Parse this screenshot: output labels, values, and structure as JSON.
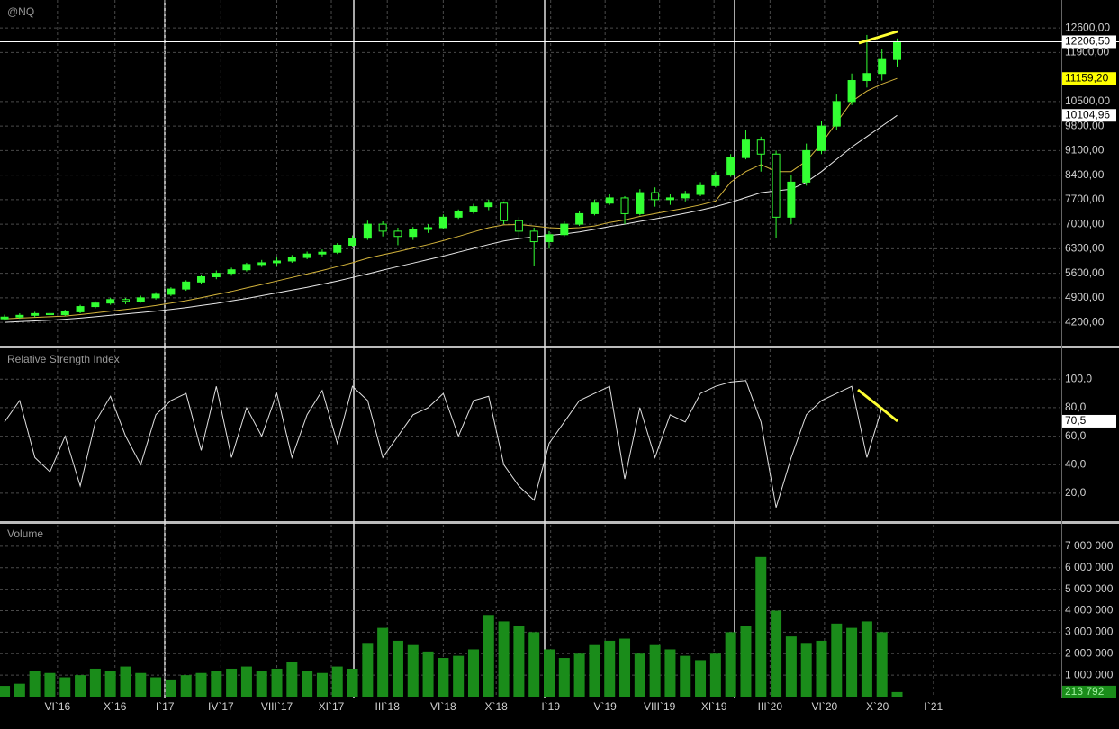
{
  "chart_data": [
    {
      "type": "candlestick",
      "title": "@NQ",
      "xlim": [
        -0.3,
        69.8
      ],
      "ylim": [
        3560,
        13400
      ],
      "grid": true,
      "up_color": "#33ff33",
      "down_color": "#000000",
      "outline_color": "#33ff33",
      "yticks": [
        {
          "value": 4200,
          "label": "4200,00"
        },
        {
          "value": 4900,
          "label": "4900,00"
        },
        {
          "value": 5600,
          "label": "5600,00"
        },
        {
          "value": 6300,
          "label": "6300,00"
        },
        {
          "value": 7000,
          "label": "7000,00"
        },
        {
          "value": 7700,
          "label": "7700,00"
        },
        {
          "value": 8400,
          "label": "8400,00"
        },
        {
          "value": 9100,
          "label": "9100,00"
        },
        {
          "value": 9800,
          "label": "9800,00"
        },
        {
          "value": 10500,
          "label": "10500,00"
        },
        {
          "value": 11900,
          "label": "11900,00"
        },
        {
          "value": 12600,
          "label": "12600,00"
        }
      ],
      "open": [
        4300,
        4350,
        4400,
        4450,
        4420,
        4500,
        4650,
        4750,
        4850,
        4800,
        4900,
        5000,
        5150,
        5350,
        5500,
        5600,
        5700,
        5850,
        5900,
        5950,
        6050,
        6150,
        6200,
        6400,
        6600,
        7000,
        6800,
        6650,
        6850,
        6900,
        7200,
        7350,
        7500,
        7600,
        7100,
        6800,
        6500,
        6700,
        7000,
        7300,
        7600,
        7750,
        7300,
        7900,
        7700,
        7750,
        7850,
        8100,
        8400,
        8900,
        9400,
        9000,
        7200,
        8200,
        9100,
        9800,
        10500,
        11100,
        11300,
        11700
      ],
      "high": [
        4420,
        4460,
        4500,
        4500,
        4560,
        4700,
        4800,
        4900,
        4900,
        4960,
        5060,
        5200,
        5400,
        5560,
        5680,
        5760,
        5900,
        5980,
        6050,
        6120,
        6220,
        6280,
        6460,
        6680,
        7100,
        7080,
        6900,
        6920,
        7000,
        7280,
        7420,
        7580,
        7700,
        7650,
        7200,
        6900,
        6800,
        7080,
        7380,
        7700,
        7850,
        7800,
        8000,
        8050,
        7850,
        7950,
        8200,
        8500,
        9000,
        9700,
        9500,
        9100,
        8400,
        9300,
        9950,
        10700,
        11300,
        12400,
        12000,
        12300
      ],
      "low": [
        4250,
        4300,
        4350,
        4330,
        4380,
        4460,
        4600,
        4700,
        4720,
        4760,
        4850,
        4950,
        5100,
        5300,
        5430,
        5530,
        5650,
        5780,
        5820,
        5900,
        6000,
        6080,
        6150,
        6350,
        6550,
        6650,
        6400,
        6550,
        6750,
        6850,
        7150,
        7300,
        7400,
        7000,
        6600,
        5800,
        6300,
        6650,
        6950,
        7250,
        7550,
        7000,
        7250,
        7500,
        7550,
        7650,
        7800,
        8050,
        8350,
        8850,
        8500,
        6600,
        7000,
        8100,
        9000,
        9700,
        10400,
        10900,
        11100,
        11500
      ],
      "close": [
        4350,
        4400,
        4450,
        4420,
        4500,
        4650,
        4750,
        4850,
        4800,
        4900,
        5000,
        5150,
        5350,
        5500,
        5600,
        5700,
        5850,
        5900,
        5950,
        6050,
        6150,
        6200,
        6400,
        6600,
        7000,
        6800,
        6650,
        6850,
        6900,
        7200,
        7350,
        7500,
        7600,
        7100,
        6800,
        6500,
        6700,
        7000,
        7300,
        7600,
        7750,
        7300,
        7900,
        7700,
        7750,
        7850,
        8100,
        8400,
        8900,
        9400,
        9000,
        7200,
        8200,
        9100,
        9800,
        10500,
        11100,
        11300,
        11700,
        12206.5
      ],
      "overlays": [
        {
          "color": "#d4b43c",
          "values": [
            4300,
            4320,
            4340,
            4360,
            4380,
            4420,
            4470,
            4520,
            4570,
            4620,
            4680,
            4750,
            4820,
            4900,
            4990,
            5080,
            5180,
            5280,
            5380,
            5480,
            5580,
            5680,
            5790,
            5900,
            6030,
            6130,
            6220,
            6320,
            6420,
            6530,
            6650,
            6780,
            6900,
            6980,
            6990,
            6950,
            6900,
            6880,
            6900,
            6950,
            7050,
            7120,
            7220,
            7300,
            7380,
            7460,
            7550,
            7660,
            8200,
            8500,
            8700,
            8500,
            8500,
            8800,
            9300,
            9900,
            10500,
            10800,
            11000,
            11159.2
          ]
        },
        {
          "color": "#e8e8e8",
          "values": [
            4200,
            4220,
            4240,
            4260,
            4290,
            4320,
            4360,
            4400,
            4440,
            4480,
            4520,
            4570,
            4620,
            4680,
            4740,
            4810,
            4880,
            4960,
            5040,
            5120,
            5200,
            5290,
            5380,
            5480,
            5580,
            5690,
            5790,
            5890,
            5990,
            6090,
            6200,
            6310,
            6420,
            6520,
            6590,
            6640,
            6680,
            6720,
            6780,
            6850,
            6930,
            7000,
            7080,
            7150,
            7230,
            7310,
            7400,
            7500,
            7620,
            7760,
            7900,
            7950,
            8000,
            8200,
            8500,
            8850,
            9200,
            9500,
            9800,
            10104.96
          ]
        }
      ],
      "markers": [
        {
          "value": 12206.5,
          "label": "12206,50",
          "color": "#ffffff"
        },
        {
          "value": 11159.2,
          "label": "11159,20",
          "color": "#ffff00"
        },
        {
          "value": 10104.96,
          "label": "10104,96",
          "color": "#ffffff"
        }
      ]
    },
    {
      "type": "line",
      "title": "Relative Strength Index",
      "color": "#e0e0e0",
      "xlim": [
        -0.3,
        69.8
      ],
      "ylim": [
        1,
        121
      ],
      "grid": true,
      "yticks": [
        {
          "value": 20,
          "label": "20,0"
        },
        {
          "value": 40,
          "label": "40,0"
        },
        {
          "value": 60,
          "label": "60,0"
        },
        {
          "value": 80,
          "label": "80,0"
        },
        {
          "value": 100,
          "label": "100,0"
        }
      ],
      "values": [
        70,
        85,
        45,
        35,
        60,
        25,
        70,
        88,
        60,
        40,
        75,
        85,
        90,
        50,
        95,
        45,
        80,
        60,
        90,
        45,
        75,
        92,
        55,
        95,
        85,
        45,
        60,
        75,
        80,
        90,
        60,
        85,
        88,
        40,
        25,
        15,
        55,
        70,
        85,
        90,
        95,
        30,
        80,
        45,
        75,
        70,
        90,
        95,
        98,
        99,
        70,
        10,
        45,
        75,
        85,
        90,
        95,
        45,
        80,
        70.5
      ],
      "markers": [
        {
          "value": 70.5,
          "label": "70,5",
          "color": "#ffffff"
        }
      ]
    },
    {
      "type": "bar",
      "title": "Volume",
      "color": "#1a8c1a",
      "xlim": [
        -0.3,
        69.8
      ],
      "ylim": [
        0,
        8000000
      ],
      "grid": true,
      "yticks": [
        {
          "value": 1000000,
          "label": "1 000 000"
        },
        {
          "value": 2000000,
          "label": "2 000 000"
        },
        {
          "value": 3000000,
          "label": "3 000 000"
        },
        {
          "value": 4000000,
          "label": "4 000 000"
        },
        {
          "value": 5000000,
          "label": "5 000 000"
        },
        {
          "value": 6000000,
          "label": "6 000 000"
        },
        {
          "value": 7000000,
          "label": "7 000 000"
        }
      ],
      "xticks": [
        {
          "value": 3.5,
          "label": "VI`16"
        },
        {
          "value": 7.3,
          "label": "X`16"
        },
        {
          "value": 10.6,
          "label": "I`17"
        },
        {
          "value": 14.3,
          "label": "IV`17"
        },
        {
          "value": 18,
          "label": "VIII`17"
        },
        {
          "value": 21.6,
          "label": "XI`17"
        },
        {
          "value": 25.3,
          "label": "III`18"
        },
        {
          "value": 29,
          "label": "VI`18"
        },
        {
          "value": 32.5,
          "label": "X`18"
        },
        {
          "value": 36.1,
          "label": "I`19"
        },
        {
          "value": 39.7,
          "label": "V`19"
        },
        {
          "value": 43.3,
          "label": "VIII`19"
        },
        {
          "value": 46.9,
          "label": "XI`19"
        },
        {
          "value": 50.6,
          "label": "III`20"
        },
        {
          "value": 54.2,
          "label": "VI`20"
        },
        {
          "value": 57.7,
          "label": "X`20"
        },
        {
          "value": 61.4,
          "label": "I`21"
        }
      ],
      "values": [
        500000,
        600000,
        1200000,
        1100000,
        900000,
        1000000,
        1300000,
        1200000,
        1400000,
        1100000,
        900000,
        800000,
        1000000,
        1100000,
        1200000,
        1300000,
        1400000,
        1200000,
        1300000,
        1600000,
        1200000,
        1100000,
        1400000,
        1300000,
        2500000,
        3200000,
        2600000,
        2400000,
        2100000,
        1800000,
        1900000,
        2200000,
        3800000,
        3500000,
        3300000,
        3000000,
        2200000,
        1800000,
        2000000,
        2400000,
        2600000,
        2700000,
        2000000,
        2400000,
        2200000,
        1900000,
        1700000,
        2000000,
        3000000,
        3300000,
        6500000,
        4000000,
        2800000,
        2500000,
        2600000,
        3400000,
        3200000,
        3500000,
        3000000,
        213792
      ],
      "markers": [
        {
          "value": 213792,
          "label": "213 792",
          "color": "#1a8c1a"
        }
      ]
    }
  ]
}
